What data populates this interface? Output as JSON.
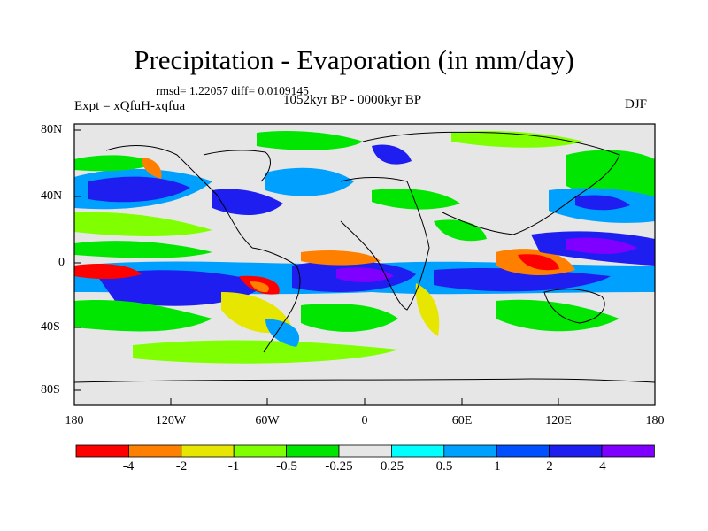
{
  "title": "Precipitation - Evaporation (in mm/day)",
  "stats": "rmsd= 1.22057 diff= 0.0109145",
  "experiment": "Expt = xQfuH-xqfua",
  "period": "1052kyr BP - 0000kyr BP",
  "season": "DJF",
  "lat_ticks": [
    "80N",
    "40N",
    "0",
    "40S",
    "80S"
  ],
  "lon_ticks": [
    "180",
    "120W",
    "60W",
    "0",
    "60E",
    "120E",
    "180"
  ],
  "colorbar": {
    "labels": [
      "-4",
      "-2",
      "-1",
      "-0.5",
      "-0.25",
      "0.25",
      "0.5",
      "1",
      "2",
      "4"
    ],
    "colors": [
      "#ff0000",
      "#ff8000",
      "#e6e600",
      "#80ff00",
      "#00e600",
      "#e6e6e6",
      "#00ffff",
      "#00a0ff",
      "#0050ff",
      "#1e1ef0",
      "#8000ff"
    ]
  }
}
